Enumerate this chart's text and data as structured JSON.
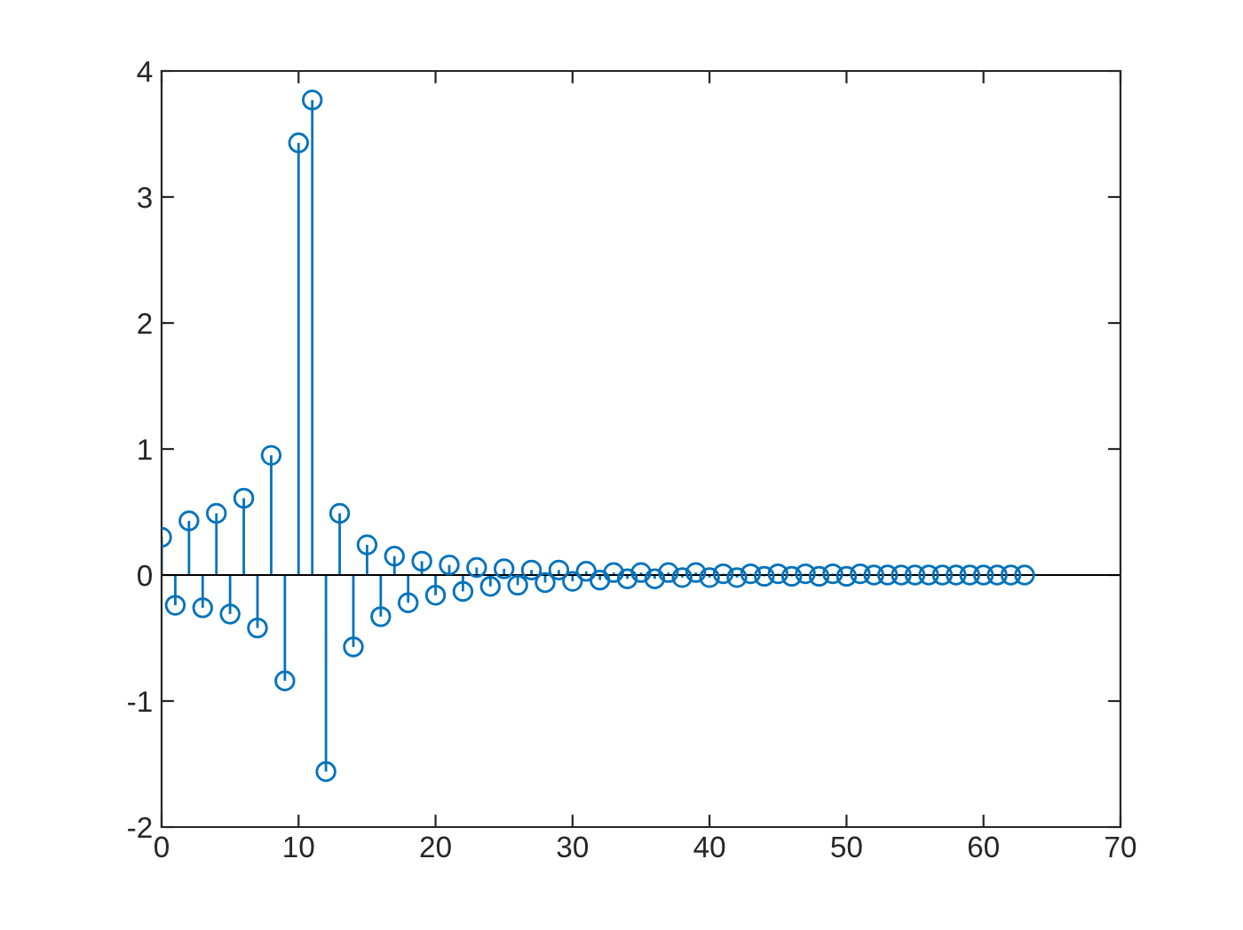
{
  "chart_data": {
    "type": "lollipop",
    "color": "#0072bd",
    "marker": "circle",
    "grid": false,
    "x": [
      0,
      1,
      2,
      3,
      4,
      5,
      6,
      7,
      8,
      9,
      10,
      11,
      12,
      13,
      14,
      15,
      16,
      17,
      18,
      19,
      20,
      21,
      22,
      23,
      24,
      25,
      26,
      27,
      28,
      29,
      30,
      31,
      32,
      33,
      34,
      35,
      36,
      37,
      38,
      39,
      40,
      41,
      42,
      43,
      44,
      45,
      46,
      47,
      48,
      49,
      50,
      51,
      52,
      53,
      54,
      55,
      56,
      57,
      58,
      59,
      60,
      61,
      62,
      63
    ],
    "values": [
      0.3,
      -0.24,
      0.43,
      -0.26,
      0.49,
      -0.31,
      0.61,
      -0.42,
      0.95,
      -0.84,
      3.43,
      3.77,
      -1.56,
      0.49,
      -0.57,
      0.24,
      -0.33,
      0.15,
      -0.22,
      0.11,
      -0.16,
      0.08,
      -0.13,
      0.06,
      -0.09,
      0.05,
      -0.08,
      0.04,
      -0.06,
      0.04,
      -0.05,
      0.03,
      -0.04,
      0.02,
      -0.03,
      0.02,
      -0.03,
      0.02,
      -0.02,
      0.02,
      -0.02,
      0.01,
      -0.02,
      0.01,
      -0.01,
      0.01,
      -0.01,
      0.01,
      -0.01,
      0.01,
      -0.01,
      0.01,
      0,
      0,
      0,
      0,
      0,
      0,
      0,
      0,
      0,
      0,
      0,
      0
    ],
    "xlim": [
      0,
      70
    ],
    "xticks": [
      0,
      10,
      20,
      30,
      40,
      50,
      60,
      70
    ],
    "ylim": [
      -2,
      4
    ],
    "yticks": [
      -2,
      -1,
      0,
      1,
      2,
      3,
      4
    ],
    "ref_lines": [
      {
        "axis": "y",
        "value": 0,
        "color": "#000000"
      }
    ]
  }
}
